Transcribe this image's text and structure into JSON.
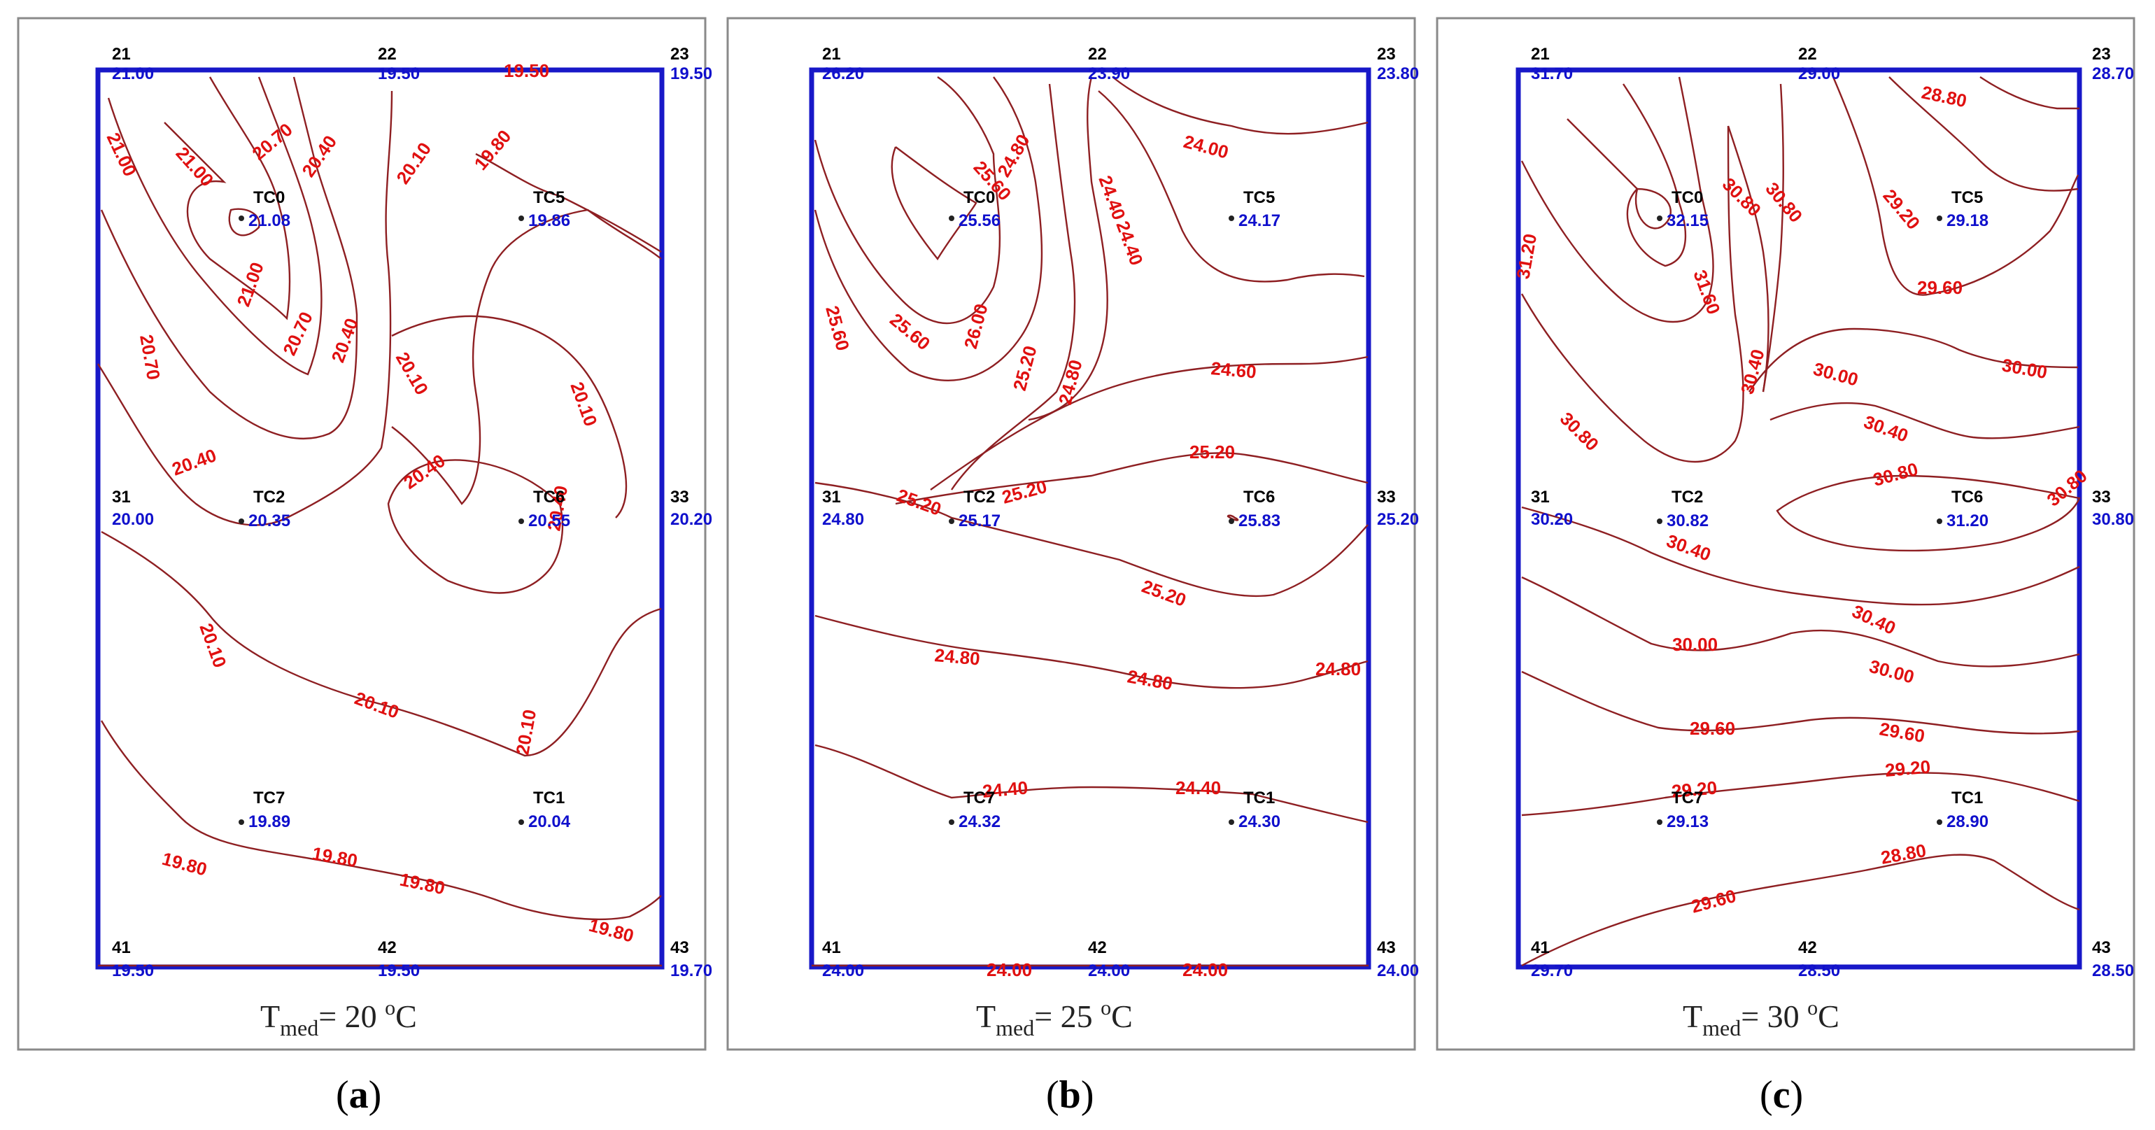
{
  "panels": [
    {
      "id": "a",
      "panel_label": "a",
      "caption": {
        "base": "T",
        "sub": "med",
        "eq": "= 20 ",
        "sup": "o",
        "unit": "C"
      },
      "sensors": [
        {
          "name": "21",
          "value": "21.00",
          "tc": false
        },
        {
          "name": "22",
          "value": "19.50",
          "tc": false
        },
        {
          "name": "23",
          "value": "19.50",
          "tc": false
        },
        {
          "name": "31",
          "value": "20.00",
          "tc": false
        },
        {
          "name": "33",
          "value": "20.20",
          "tc": false
        },
        {
          "name": "41",
          "value": "19.50",
          "tc": false
        },
        {
          "name": "42",
          "value": "19.50",
          "tc": false
        },
        {
          "name": "43",
          "value": "19.70",
          "tc": false
        },
        {
          "name": "TC0",
          "value": "21.08",
          "tc": true
        },
        {
          "name": "TC5",
          "value": "19.86",
          "tc": true
        },
        {
          "name": "TC2",
          "value": "20.35",
          "tc": true
        },
        {
          "name": "TC6",
          "value": "20.55",
          "tc": true
        },
        {
          "name": "TC7",
          "value": "19.89",
          "tc": true
        },
        {
          "name": "TC1",
          "value": "20.04",
          "tc": true
        }
      ],
      "contour_labels": [
        "19.50",
        "21.00",
        "21.00",
        "20.70",
        "20.40",
        "20.10",
        "19.80",
        "21.00",
        "20.70",
        "20.70",
        "20.40",
        "20.10",
        "20.10",
        "20.40",
        "20.40",
        "20.40",
        "20.10",
        "20.10",
        "20.10",
        "19.80",
        "19.80",
        "19.80",
        "19.80"
      ]
    },
    {
      "id": "b",
      "panel_label": "b",
      "caption": {
        "base": "T",
        "sub": "med",
        "eq": "= 25 ",
        "sup": "o",
        "unit": "C"
      },
      "sensors": [
        {
          "name": "21",
          "value": "26.20",
          "tc": false
        },
        {
          "name": "22",
          "value": "23.90",
          "tc": false
        },
        {
          "name": "23",
          "value": "23.80",
          "tc": false
        },
        {
          "name": "31",
          "value": "24.80",
          "tc": false
        },
        {
          "name": "33",
          "value": "25.20",
          "tc": false
        },
        {
          "name": "41",
          "value": "24.00",
          "tc": false
        },
        {
          "name": "42",
          "value": "24.00",
          "tc": false
        },
        {
          "name": "43",
          "value": "24.00",
          "tc": false
        },
        {
          "name": "TC0",
          "value": "25.56",
          "tc": true
        },
        {
          "name": "TC5",
          "value": "24.17",
          "tc": true
        },
        {
          "name": "TC2",
          "value": "25.17",
          "tc": true
        },
        {
          "name": "TC6",
          "value": "25.83",
          "tc": true
        },
        {
          "name": "TC7",
          "value": "24.32",
          "tc": true
        },
        {
          "name": "TC1",
          "value": "24.30",
          "tc": true
        }
      ],
      "contour_labels": [
        "24.00",
        "25.60",
        "25.60",
        "24.80",
        "24.40",
        "24.40",
        "25.60",
        "26.00",
        "25.20",
        "24.80",
        "24.60",
        "25.20",
        "25.20",
        "25.20",
        "25.20",
        "24.80",
        "24.80",
        "24.80",
        "24.40",
        "24.40",
        "24.00",
        "24.00"
      ]
    },
    {
      "id": "c",
      "panel_label": "c",
      "caption": {
        "base": "T",
        "sub": "med",
        "eq": "= 30 ",
        "sup": "o",
        "unit": "C"
      },
      "sensors": [
        {
          "name": "21",
          "value": "31.70",
          "tc": false
        },
        {
          "name": "22",
          "value": "29.00",
          "tc": false
        },
        {
          "name": "23",
          "value": "28.70",
          "tc": false
        },
        {
          "name": "31",
          "value": "30.20",
          "tc": false
        },
        {
          "name": "33",
          "value": "30.80",
          "tc": false
        },
        {
          "name": "41",
          "value": "29.70",
          "tc": false
        },
        {
          "name": "42",
          "value": "28.50",
          "tc": false
        },
        {
          "name": "43",
          "value": "28.50",
          "tc": false
        },
        {
          "name": "TC0",
          "value": "32.15",
          "tc": true
        },
        {
          "name": "TC5",
          "value": "29.18",
          "tc": true
        },
        {
          "name": "TC2",
          "value": "30.82",
          "tc": true
        },
        {
          "name": "TC6",
          "value": "31.20",
          "tc": true
        },
        {
          "name": "TC7",
          "value": "29.13",
          "tc": true
        },
        {
          "name": "TC1",
          "value": "28.90",
          "tc": true
        }
      ],
      "contour_labels": [
        "28.80",
        "31.60",
        "31.20",
        "30.80",
        "30.80",
        "30.40",
        "29.20",
        "29.60",
        "30.00",
        "30.00",
        "30.40",
        "30.80",
        "30.80",
        "30.80",
        "30.40",
        "30.40",
        "30.00",
        "30.00",
        "29.60",
        "29.60",
        "29.20",
        "29.20",
        "28.80",
        "29.60"
      ]
    }
  ],
  "colors": {
    "plate_border": "#1818c8",
    "contour_line": "#8e1f22",
    "contour_label": "#e01010",
    "sensor_value": "#1010cc",
    "sensor_name": "#000000"
  }
}
